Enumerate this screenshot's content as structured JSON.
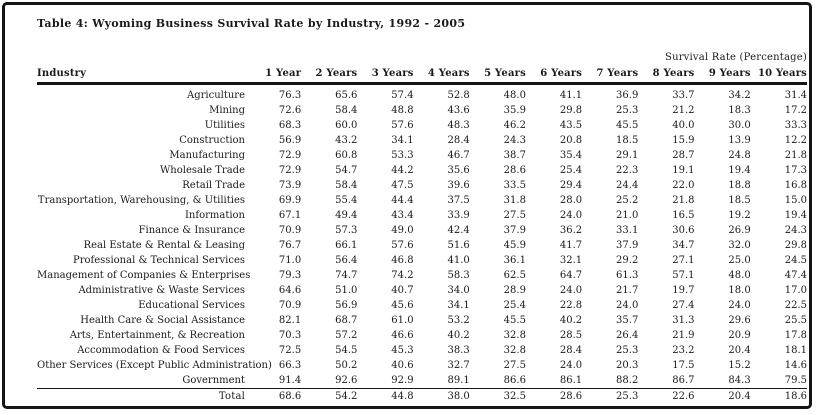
{
  "page": {
    "title": "Table 4: Wyoming Business Survival Rate by Industry, 1992 - 2005"
  },
  "colors": {
    "text": "#1a1a1a",
    "border": "#141414",
    "background": "#ffffff"
  },
  "table": {
    "span_header": "Survival Rate (Percentage)",
    "columns": [
      "Industry",
      "1 Year",
      "2 Years",
      "3 Years",
      "4 Years",
      "5 Years",
      "6 Years",
      "7 Years",
      "8 Years",
      "9 Years",
      "10 Years"
    ],
    "rows": [
      {
        "industry": "Agriculture",
        "values": [
          "76.3",
          "65.6",
          "57.4",
          "52.8",
          "48.0",
          "41.1",
          "36.9",
          "33.7",
          "34.2",
          "31.4"
        ]
      },
      {
        "industry": "Mining",
        "values": [
          "72.6",
          "58.4",
          "48.8",
          "43.6",
          "35.9",
          "29.8",
          "25.3",
          "21.2",
          "18.3",
          "17.2"
        ]
      },
      {
        "industry": "Utilities",
        "values": [
          "68.3",
          "60.0",
          "57.6",
          "48.3",
          "46.2",
          "43.5",
          "45.5",
          "40.0",
          "30.0",
          "33.3"
        ]
      },
      {
        "industry": "Construction",
        "values": [
          "56.9",
          "43.2",
          "34.1",
          "28.4",
          "24.3",
          "20.8",
          "18.5",
          "15.9",
          "13.9",
          "12.2"
        ]
      },
      {
        "industry": "Manufacturing",
        "values": [
          "72.9",
          "60.8",
          "53.3",
          "46.7",
          "38.7",
          "35.4",
          "29.1",
          "28.7",
          "24.8",
          "21.8"
        ]
      },
      {
        "industry": "Wholesale Trade",
        "values": [
          "72.9",
          "54.7",
          "44.2",
          "35.6",
          "28.6",
          "25.4",
          "22.3",
          "19.1",
          "19.4",
          "17.3"
        ]
      },
      {
        "industry": "Retail Trade",
        "values": [
          "73.9",
          "58.4",
          "47.5",
          "39.6",
          "33.5",
          "29.4",
          "24.4",
          "22.0",
          "18.8",
          "16.8"
        ]
      },
      {
        "industry": "Transportation, Warehousing, & Utilities",
        "values": [
          "69.9",
          "55.4",
          "44.4",
          "37.5",
          "31.8",
          "28.0",
          "25.2",
          "21.8",
          "18.5",
          "15.0"
        ]
      },
      {
        "industry": "Information",
        "values": [
          "67.1",
          "49.4",
          "43.4",
          "33.9",
          "27.5",
          "24.0",
          "21.0",
          "16.5",
          "19.2",
          "19.4"
        ]
      },
      {
        "industry": "Finance & Insurance",
        "values": [
          "70.9",
          "57.3",
          "49.0",
          "42.4",
          "37.9",
          "36.2",
          "33.1",
          "30.6",
          "26.9",
          "24.3"
        ]
      },
      {
        "industry": "Real Estate & Rental & Leasing",
        "values": [
          "76.7",
          "66.1",
          "57.6",
          "51.6",
          "45.9",
          "41.7",
          "37.9",
          "34.7",
          "32.0",
          "29.8"
        ]
      },
      {
        "industry": "Professional & Technical Services",
        "values": [
          "71.0",
          "56.4",
          "46.8",
          "41.0",
          "36.1",
          "32.1",
          "29.2",
          "27.1",
          "25.0",
          "24.5"
        ]
      },
      {
        "industry": "Management of Companies & Enterprises",
        "values": [
          "79.3",
          "74.7",
          "74.2",
          "58.3",
          "62.5",
          "64.7",
          "61.3",
          "57.1",
          "48.0",
          "47.4"
        ]
      },
      {
        "industry": "Administrative & Waste Services",
        "values": [
          "64.6",
          "51.0",
          "40.7",
          "34.0",
          "28.9",
          "24.0",
          "21.7",
          "19.7",
          "18.0",
          "17.0"
        ]
      },
      {
        "industry": "Educational Services",
        "values": [
          "70.9",
          "56.9",
          "45.6",
          "34.1",
          "25.4",
          "22.8",
          "24.0",
          "27.4",
          "24.0",
          "22.5"
        ]
      },
      {
        "industry": "Health Care & Social Assistance",
        "values": [
          "82.1",
          "68.7",
          "61.0",
          "53.2",
          "45.5",
          "40.2",
          "35.7",
          "31.3",
          "29.6",
          "25.5"
        ]
      },
      {
        "industry": "Arts, Entertainment, & Recreation",
        "values": [
          "70.3",
          "57.2",
          "46.6",
          "40.2",
          "32.8",
          "28.5",
          "26.4",
          "21.9",
          "20.9",
          "17.8"
        ]
      },
      {
        "industry": "Accommodation & Food Services",
        "values": [
          "72.5",
          "54.5",
          "45.3",
          "38.3",
          "32.8",
          "28.4",
          "25.3",
          "23.2",
          "20.4",
          "18.1"
        ]
      },
      {
        "industry": "Other Services (Except Public Administration)",
        "values": [
          "66.3",
          "50.2",
          "40.6",
          "32.7",
          "27.5",
          "24.0",
          "20.3",
          "17.5",
          "15.2",
          "14.6"
        ]
      },
      {
        "industry": "Government",
        "values": [
          "91.4",
          "92.6",
          "92.9",
          "89.1",
          "86.6",
          "86.1",
          "88.2",
          "86.7",
          "84.3",
          "79.5"
        ]
      }
    ],
    "total_row": {
      "industry": "Total",
      "values": [
        "68.6",
        "54.2",
        "44.8",
        "38.0",
        "32.5",
        "28.6",
        "25.3",
        "22.6",
        "20.4",
        "18.6"
      ]
    }
  }
}
